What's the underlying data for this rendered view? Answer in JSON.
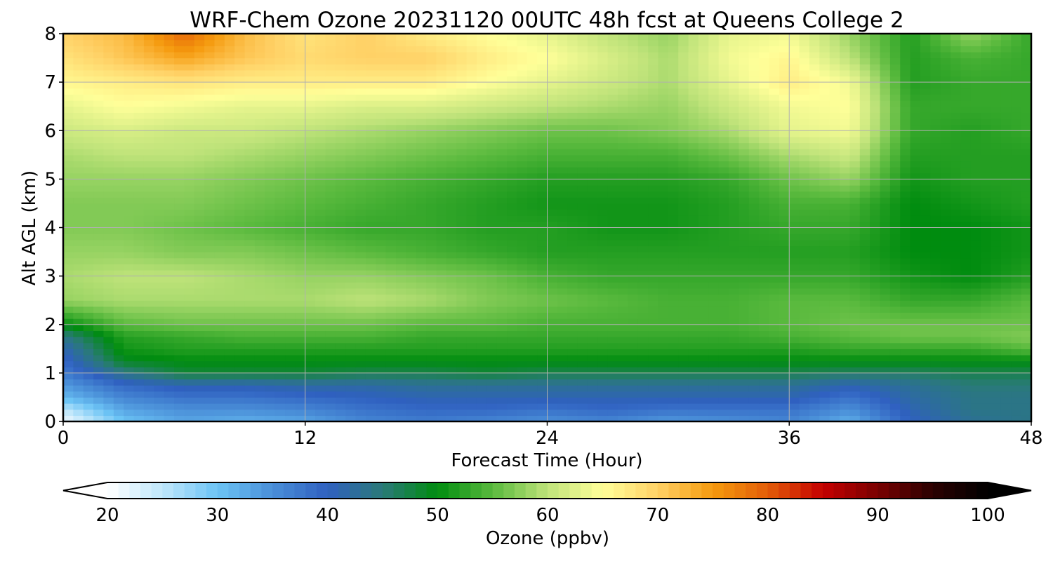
{
  "chart_data": {
    "type": "heatmap",
    "title": "WRF-Chem Ozone  20231120 00UTC 48h fcst at Queens College 2",
    "xlabel": "Forecast Time (Hour)",
    "ylabel": "Alt AGL (km)",
    "xlim": [
      0,
      48
    ],
    "ylim": [
      0,
      8
    ],
    "xticks": [
      0,
      12,
      24,
      36,
      48
    ],
    "yticks": [
      0,
      1,
      2,
      3,
      4,
      5,
      6,
      7,
      8
    ],
    "grid": true,
    "z_label": "Ozone  (ppbv)",
    "z_range": [
      20,
      100
    ],
    "colorbar": {
      "ticks": [
        20,
        30,
        40,
        50,
        60,
        70,
        80,
        90,
        100
      ],
      "label": "Ozone  (ppbv)",
      "extend": "both",
      "orientation": "horizontal",
      "colors": [
        "#ffffff",
        "#bfe6fb",
        "#6cc4f5",
        "#4a8fd8",
        "#2f60c0",
        "#2a7a78",
        "#008c0f",
        "#5aba3e",
        "#bfe37a",
        "#ffff99",
        "#ffd166",
        "#f59a0e",
        "#e35d08",
        "#c40000",
        "#7a0000",
        "#2a0000",
        "#000000"
      ]
    },
    "x": [
      0,
      3,
      6,
      9,
      12,
      15,
      18,
      21,
      24,
      27,
      30,
      33,
      36,
      39,
      42,
      45,
      48
    ],
    "y": [
      0,
      0.25,
      0.5,
      0.75,
      1,
      1.25,
      1.5,
      1.75,
      2,
      2.5,
      3,
      3.5,
      4,
      4.5,
      5,
      5.5,
      6,
      6.5,
      7,
      7.5,
      8
    ],
    "z": [
      [
        21,
        30,
        33,
        32,
        33,
        36,
        37,
        36,
        35,
        36,
        34,
        35,
        36,
        32,
        40,
        43,
        44
      ],
      [
        25,
        33,
        35,
        35,
        36,
        38,
        39,
        39,
        38,
        39,
        38,
        38,
        38,
        35,
        41,
        44,
        44
      ],
      [
        31,
        36,
        38,
        38,
        39,
        40,
        41,
        41,
        41,
        41,
        41,
        41,
        41,
        38,
        42,
        44,
        44
      ],
      [
        34,
        39,
        41,
        41,
        42,
        42,
        43,
        43,
        43,
        43,
        43,
        43,
        43,
        41,
        43,
        45,
        45
      ],
      [
        37,
        44,
        48,
        48,
        48,
        47,
        47,
        48,
        47,
        47,
        47,
        47,
        47,
        46,
        46,
        47,
        47
      ],
      [
        39,
        49,
        50,
        50,
        50,
        50,
        50,
        50,
        50,
        50,
        50,
        50,
        50,
        50,
        50,
        50,
        50
      ],
      [
        41,
        51,
        52,
        52,
        52,
        52,
        52,
        52,
        52,
        52,
        52,
        52,
        52,
        53,
        53,
        53,
        55
      ],
      [
        44,
        52,
        53,
        54,
        54,
        54,
        53,
        53,
        53,
        53,
        53,
        53,
        54,
        55,
        56,
        56,
        57
      ],
      [
        50,
        55,
        56,
        56,
        56,
        56,
        55,
        55,
        54,
        54,
        54,
        54,
        55,
        56,
        56,
        56,
        56
      ],
      [
        58,
        59,
        59,
        59,
        59,
        60,
        59,
        57,
        56,
        55,
        54,
        54,
        55,
        55,
        53,
        53,
        55
      ],
      [
        59,
        60,
        60,
        59,
        58,
        58,
        57,
        56,
        54,
        53,
        53,
        53,
        53,
        53,
        51,
        50,
        52
      ],
      [
        58,
        58,
        57,
        57,
        56,
        55,
        54,
        53,
        52,
        52,
        52,
        52,
        52,
        52,
        50,
        50,
        51
      ],
      [
        57,
        57,
        56,
        55,
        54,
        53,
        53,
        52,
        52,
        51,
        51,
        52,
        53,
        53,
        50,
        50,
        51
      ],
      [
        57,
        57,
        57,
        56,
        55,
        54,
        53,
        52,
        51,
        51,
        51,
        52,
        54,
        54,
        50,
        51,
        52
      ],
      [
        58,
        58,
        58,
        57,
        56,
        55,
        54,
        53,
        52,
        52,
        52,
        53,
        56,
        58,
        51,
        52,
        52
      ],
      [
        59,
        60,
        60,
        59,
        58,
        57,
        56,
        55,
        54,
        54,
        54,
        56,
        59,
        61,
        52,
        52,
        52
      ],
      [
        61,
        62,
        61,
        61,
        60,
        59,
        58,
        57,
        56,
        56,
        57,
        59,
        63,
        64,
        53,
        52,
        53
      ],
      [
        63,
        65,
        64,
        63,
        63,
        62,
        62,
        61,
        60,
        59,
        58,
        61,
        64,
        65,
        53,
        53,
        53
      ],
      [
        66,
        67,
        68,
        67,
        67,
        67,
        67,
        65,
        63,
        61,
        59,
        63,
        67,
        64,
        52,
        53,
        53
      ],
      [
        68,
        71,
        74,
        71,
        69,
        70,
        70,
        67,
        65,
        62,
        59,
        64,
        66,
        60,
        52,
        54,
        53
      ],
      [
        70,
        72,
        79,
        72,
        68,
        70,
        67,
        65,
        63,
        60,
        58,
        63,
        64,
        58,
        52,
        58,
        53
      ]
    ]
  }
}
